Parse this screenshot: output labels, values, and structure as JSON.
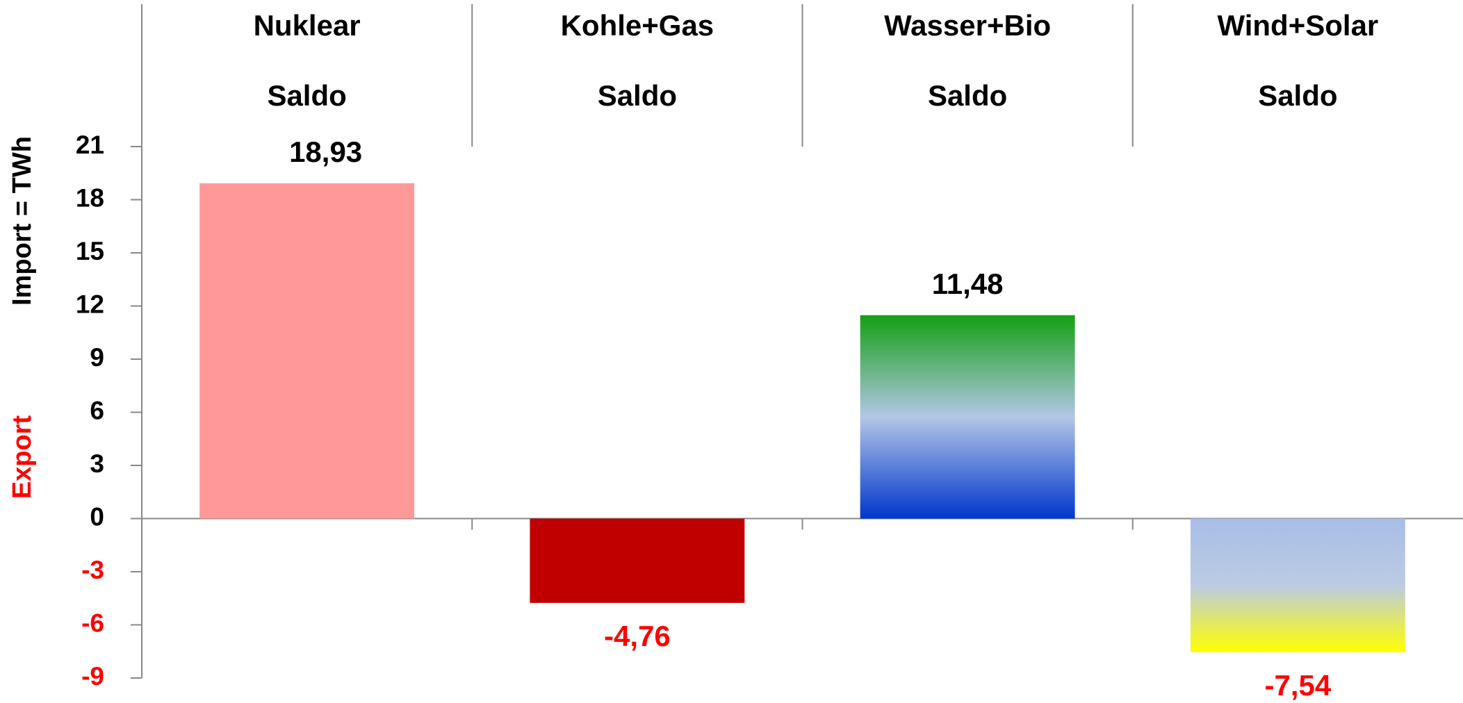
{
  "chart_data": {
    "type": "bar",
    "categories": [
      "Nuklear",
      "Kohle+Gas",
      "Wasser+Bio",
      "Wind+Solar"
    ],
    "category_sublabels": [
      "Saldo",
      "Saldo",
      "Saldo",
      "Saldo"
    ],
    "values": [
      18.93,
      -4.76,
      11.48,
      -7.54
    ],
    "value_labels": [
      "18,93",
      "-4,76",
      "11,48",
      "-7,54"
    ],
    "colors": [
      "#ff9999",
      "#c00000",
      [
        "#13a013",
        "#b3c6e6",
        "#0036cc"
      ],
      [
        "#a8bee8",
        "#bccbe2",
        "#ffff00"
      ]
    ],
    "ylabel": {
      "import": "Import =  TWh",
      "export": "Export"
    },
    "label_color": "#000000",
    "negative_label_color": "#ff0000",
    "ylim": [
      -9,
      21
    ],
    "yticks": [
      -9,
      -6,
      -3,
      0,
      3,
      6,
      9,
      12,
      15,
      18,
      21
    ],
    "grid": false
  }
}
